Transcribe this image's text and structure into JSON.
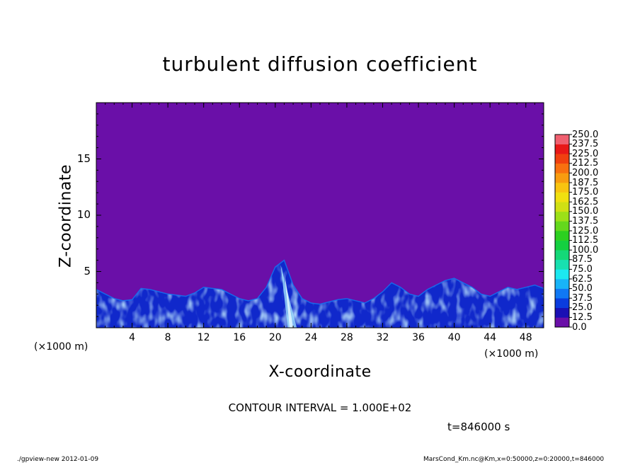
{
  "chart_data": {
    "type": "heatmap",
    "title": "turbulent diffusion coefficient",
    "xlabel": "X-coordinate",
    "ylabel": "Z-coordinate",
    "x_unit_label": "(×1000 m)",
    "x_range": [
      0,
      50
    ],
    "y_range": [
      0,
      20
    ],
    "x_ticks": [
      "4",
      "8",
      "12",
      "16",
      "20",
      "24",
      "28",
      "32",
      "36",
      "40",
      "44",
      "48"
    ],
    "y_ticks": [
      "5",
      "10",
      "15"
    ],
    "colorbar_levels": [
      "0.0",
      "12.5",
      "25.0",
      "37.5",
      "50.0",
      "62.5",
      "75.0",
      "87.5",
      "100.0",
      "112.5",
      "125.0",
      "137.5",
      "150.0",
      "162.5",
      "175.0",
      "187.5",
      "200.0",
      "212.5",
      "225.0",
      "237.5",
      "250.0"
    ],
    "colorbar_colors": [
      "#6a0fa8",
      "#1a10b4",
      "#0a3cde",
      "#1078f4",
      "#18b4f8",
      "#1ce8f0",
      "#18e0b0",
      "#14d878",
      "#14d040",
      "#2cd020",
      "#64d81c",
      "#9ce018",
      "#d0e014",
      "#f0e010",
      "#f8c410",
      "#f89c10",
      "#f87010",
      "#f04010",
      "#e81818",
      "#f06070"
    ],
    "boundary_layer_top_x": [
      0,
      1,
      2,
      3,
      4,
      5,
      6,
      7,
      8,
      9,
      10,
      11,
      12,
      13,
      14,
      15,
      16,
      17,
      18,
      19,
      20,
      21,
      22,
      23,
      24,
      25,
      26,
      27,
      28,
      29,
      30,
      31,
      32,
      33,
      34,
      35,
      36,
      37,
      38,
      39,
      40,
      41,
      42,
      43,
      44,
      45,
      46,
      47,
      48,
      49,
      50
    ],
    "boundary_layer_top_z": [
      3.4,
      3.0,
      2.6,
      2.4,
      2.5,
      3.5,
      3.4,
      3.2,
      3.0,
      2.9,
      2.8,
      3.1,
      3.6,
      3.5,
      3.4,
      3.0,
      2.6,
      2.4,
      2.6,
      3.6,
      5.4,
      6.0,
      3.8,
      2.6,
      2.2,
      2.1,
      2.3,
      2.5,
      2.6,
      2.4,
      2.2,
      2.6,
      3.2,
      4.0,
      3.6,
      3.0,
      2.8,
      3.4,
      3.8,
      4.2,
      4.4,
      4.0,
      3.6,
      3.0,
      2.8,
      3.2,
      3.6,
      3.4,
      3.6,
      3.8,
      3.5
    ],
    "contour_interval_text": "CONTOUR INTERVAL = 1.000E+02",
    "time_text": "t=846000  s"
  },
  "footer": {
    "left": "./gpview-new   2012-01-09",
    "right": "MarsCond_Km.nc@Km,x=0:50000,z=0:20000,t=846000"
  }
}
